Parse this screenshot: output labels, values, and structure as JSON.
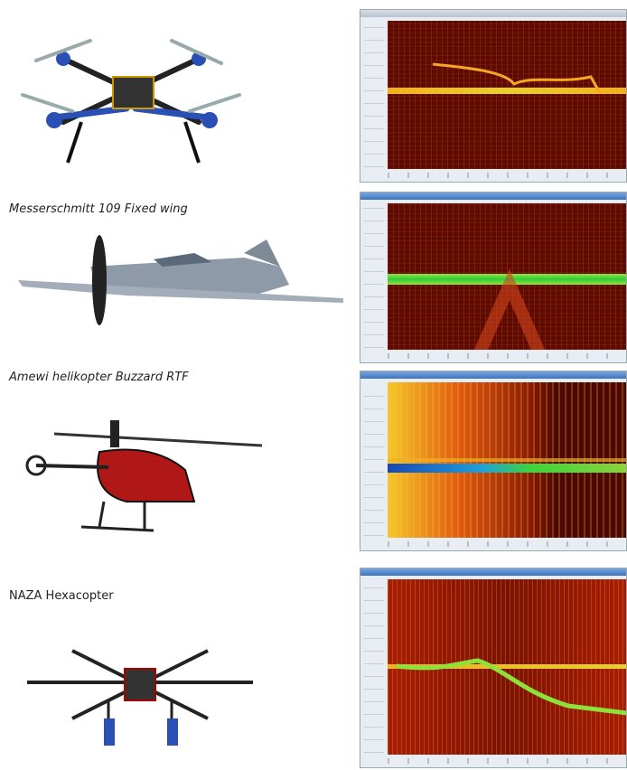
{
  "captions": [
    "Messerschmitt 109 Fixed wing",
    "Amewi helikopter Buzzard RTF",
    "NAZA Hexacopter"
  ]
}
